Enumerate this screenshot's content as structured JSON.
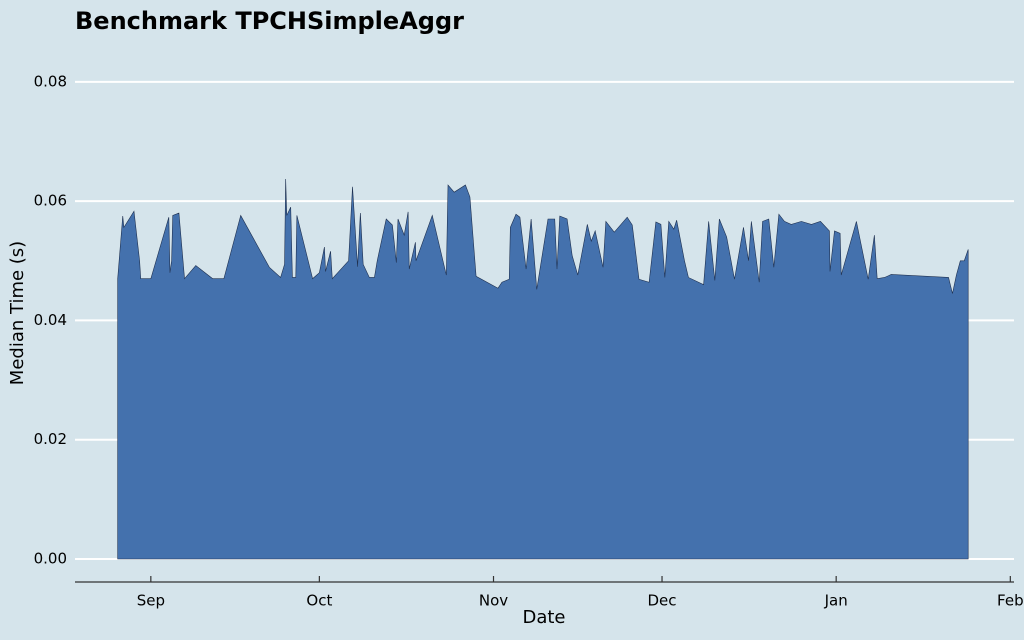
{
  "chart_data": {
    "type": "area",
    "title": "Benchmark TPCHSimpleAggr",
    "x_label": "Date",
    "y_label": "Median Time (s)",
    "color": "#4471ad",
    "grid": true,
    "xlim": [
      230.5,
      397.3
    ],
    "xticks": [
      {
        "value": 244,
        "label": "Sep"
      },
      {
        "value": 274,
        "label": "Oct"
      },
      {
        "value": 305,
        "label": "Nov"
      },
      {
        "value": 335,
        "label": "Dec"
      },
      {
        "value": 366,
        "label": "Jan"
      },
      {
        "value": 397,
        "label": "Feb"
      }
    ],
    "ylim": [
      0,
      0.085
    ],
    "yticks": [
      {
        "value": 0,
        "label": "0.00"
      },
      {
        "value": 0.02,
        "label": "0.02"
      },
      {
        "value": 0.04,
        "label": "0.04"
      },
      {
        "value": 0.06,
        "label": "0.06"
      },
      {
        "value": 0.08,
        "label": "0.08"
      }
    ],
    "x": [
      238.1,
      239.0,
      239.2,
      241.0,
      242.0,
      242.2,
      244.0,
      247.2,
      247.4,
      247.7,
      247.9,
      249.0,
      250.0,
      252.0,
      255.0,
      257.0,
      260.0,
      265.1,
      267.1,
      267.8,
      268.0,
      268.2,
      268.9,
      269.2,
      269.8,
      270.0,
      272.8,
      274.0,
      274.9,
      275.1,
      276.0,
      276.3,
      279.2,
      279.9,
      280.8,
      281.3,
      281.8,
      282.9,
      283.8,
      284.3,
      285.9,
      287.0,
      287.7,
      288.0,
      289.1,
      289.8,
      290.0,
      291.1,
      291.2,
      294.1,
      296.6,
      296.9,
      298.0,
      300.0,
      300.8,
      301.9,
      305.8,
      306.5,
      307.8,
      308.0,
      309.0,
      309.7,
      310.8,
      311.7,
      312.7,
      314.7,
      315.9,
      316.3,
      316.8,
      318.1,
      319.0,
      320.0,
      321.7,
      322.4,
      323.1,
      324.5,
      325.0,
      326.5,
      328.8,
      329.7,
      330.9,
      332.7,
      333.9,
      334.8,
      335.5,
      336.2,
      337.1,
      337.6,
      339.0,
      339.7,
      342.4,
      343.3,
      344.4,
      345.2,
      346.5,
      347.9,
      349.5,
      350.4,
      350.9,
      352.3,
      352.9,
      354.0,
      354.9,
      355.8,
      356.8,
      358.0,
      359.8,
      361.6,
      363.2,
      364.8,
      364.9,
      365.7,
      366.7,
      366.9,
      369.6,
      371.7,
      372.8,
      373.3,
      374.6,
      375.8,
      386.0,
      386.7,
      387.4,
      388.1,
      388.8,
      389.5
    ],
    "values": [
      0.047,
      0.0575,
      0.0556,
      0.0583,
      0.05,
      0.047,
      0.047,
      0.0573,
      0.048,
      0.05,
      0.0576,
      0.058,
      0.047,
      0.0492,
      0.047,
      0.047,
      0.0576,
      0.0489,
      0.0472,
      0.0494,
      0.0637,
      0.0576,
      0.059,
      0.0472,
      0.0472,
      0.0576,
      0.047,
      0.048,
      0.0523,
      0.0482,
      0.0516,
      0.047,
      0.05,
      0.0624,
      0.049,
      0.058,
      0.0494,
      0.0472,
      0.0472,
      0.05,
      0.057,
      0.056,
      0.0497,
      0.057,
      0.0543,
      0.0582,
      0.0486,
      0.0531,
      0.05,
      0.0576,
      0.0476,
      0.0627,
      0.0615,
      0.0627,
      0.0607,
      0.0474,
      0.0454,
      0.0464,
      0.0469,
      0.0556,
      0.0578,
      0.0573,
      0.0486,
      0.057,
      0.0452,
      0.057,
      0.057,
      0.0486,
      0.0575,
      0.057,
      0.0509,
      0.0476,
      0.0561,
      0.0533,
      0.055,
      0.0489,
      0.0566,
      0.0548,
      0.0573,
      0.056,
      0.0469,
      0.0464,
      0.0565,
      0.0561,
      0.0472,
      0.0566,
      0.0553,
      0.0568,
      0.05,
      0.0472,
      0.046,
      0.0566,
      0.0467,
      0.057,
      0.054,
      0.0469,
      0.0556,
      0.05,
      0.0566,
      0.0464,
      0.0566,
      0.057,
      0.0489,
      0.0578,
      0.0566,
      0.0561,
      0.0566,
      0.0561,
      0.0566,
      0.055,
      0.0482,
      0.055,
      0.0546,
      0.0476,
      0.0566,
      0.0469,
      0.0543,
      0.047,
      0.0472,
      0.0477,
      0.0472,
      0.0445,
      0.0476,
      0.05,
      0.05,
      0.0519
    ]
  }
}
